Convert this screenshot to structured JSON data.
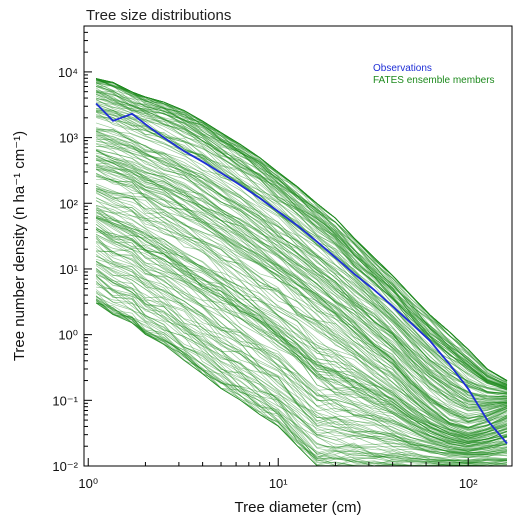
{
  "chart_data": {
    "type": "line",
    "title": "Tree size distributions",
    "xlabel": "Tree diameter (cm)",
    "ylabel": "Tree number density (n ha⁻¹ cm⁻¹)",
    "x_scale": "log",
    "y_scale": "log",
    "xlim": [
      0.95,
      170
    ],
    "ylim": [
      0.01,
      50000
    ],
    "grid": false,
    "legend_position": "top-right",
    "x_ticks": [
      {
        "value": 1,
        "label": "10⁰"
      },
      {
        "value": 10,
        "label": "10¹"
      },
      {
        "value": 100,
        "label": "10²"
      }
    ],
    "y_ticks": [
      {
        "value": 0.01,
        "label": "10⁻²"
      },
      {
        "value": 0.1,
        "label": "10⁻¹"
      },
      {
        "value": 1,
        "label": "10⁰"
      },
      {
        "value": 10,
        "label": "10¹"
      },
      {
        "value": 100,
        "label": "10²"
      },
      {
        "value": 1000,
        "label": "10³"
      },
      {
        "value": 10000,
        "label": "10⁴"
      }
    ],
    "series": [
      {
        "name": "Observations",
        "color": "#1f2fd6",
        "x": [
          1.1,
          1.35,
          1.7,
          2.0,
          2.5,
          3.2,
          4.0,
          5.0,
          6.3,
          8.0,
          10,
          12.6,
          16,
          20,
          25,
          32,
          40,
          50,
          63,
          80,
          100,
          126,
          160
        ],
        "y": [
          3300,
          1800,
          2300,
          1600,
          1000,
          620,
          430,
          290,
          190,
          120,
          75,
          46,
          26,
          15,
          8.5,
          4.8,
          2.7,
          1.5,
          0.8,
          0.35,
          0.15,
          0.05,
          0.022
        ]
      },
      {
        "name": "FATES ensemble members",
        "color": "#1d8a1d",
        "x": [
          1.1,
          1.35,
          1.7,
          2.0,
          2.5,
          3.2,
          4.0,
          5.0,
          6.3,
          8.0,
          10,
          12.6,
          16,
          20,
          25,
          32,
          40,
          50,
          63,
          80,
          100,
          126,
          160
        ],
        "y_upper": [
          8000,
          7000,
          5000,
          4200,
          3500,
          2600,
          1800,
          1200,
          800,
          500,
          300,
          180,
          100,
          60,
          30,
          15,
          8,
          4,
          2,
          1.1,
          0.6,
          0.3,
          0.2
        ],
        "y_median": [
          250,
          200,
          160,
          120,
          90,
          60,
          42,
          28,
          18,
          11,
          7,
          4.2,
          2.5,
          1.5,
          0.9,
          0.5,
          0.3,
          0.15,
          0.08,
          0.05,
          0.04,
          0.05,
          0.07
        ],
        "y_lower": [
          3,
          2,
          1.5,
          1,
          0.7,
          0.4,
          0.25,
          0.15,
          0.1,
          0.06,
          0.04,
          0.02,
          0.01,
          0.01,
          0.01,
          0.01,
          0.01,
          0.01,
          0.01,
          0.01,
          0.01,
          0.01,
          0.01
        ]
      }
    ]
  }
}
